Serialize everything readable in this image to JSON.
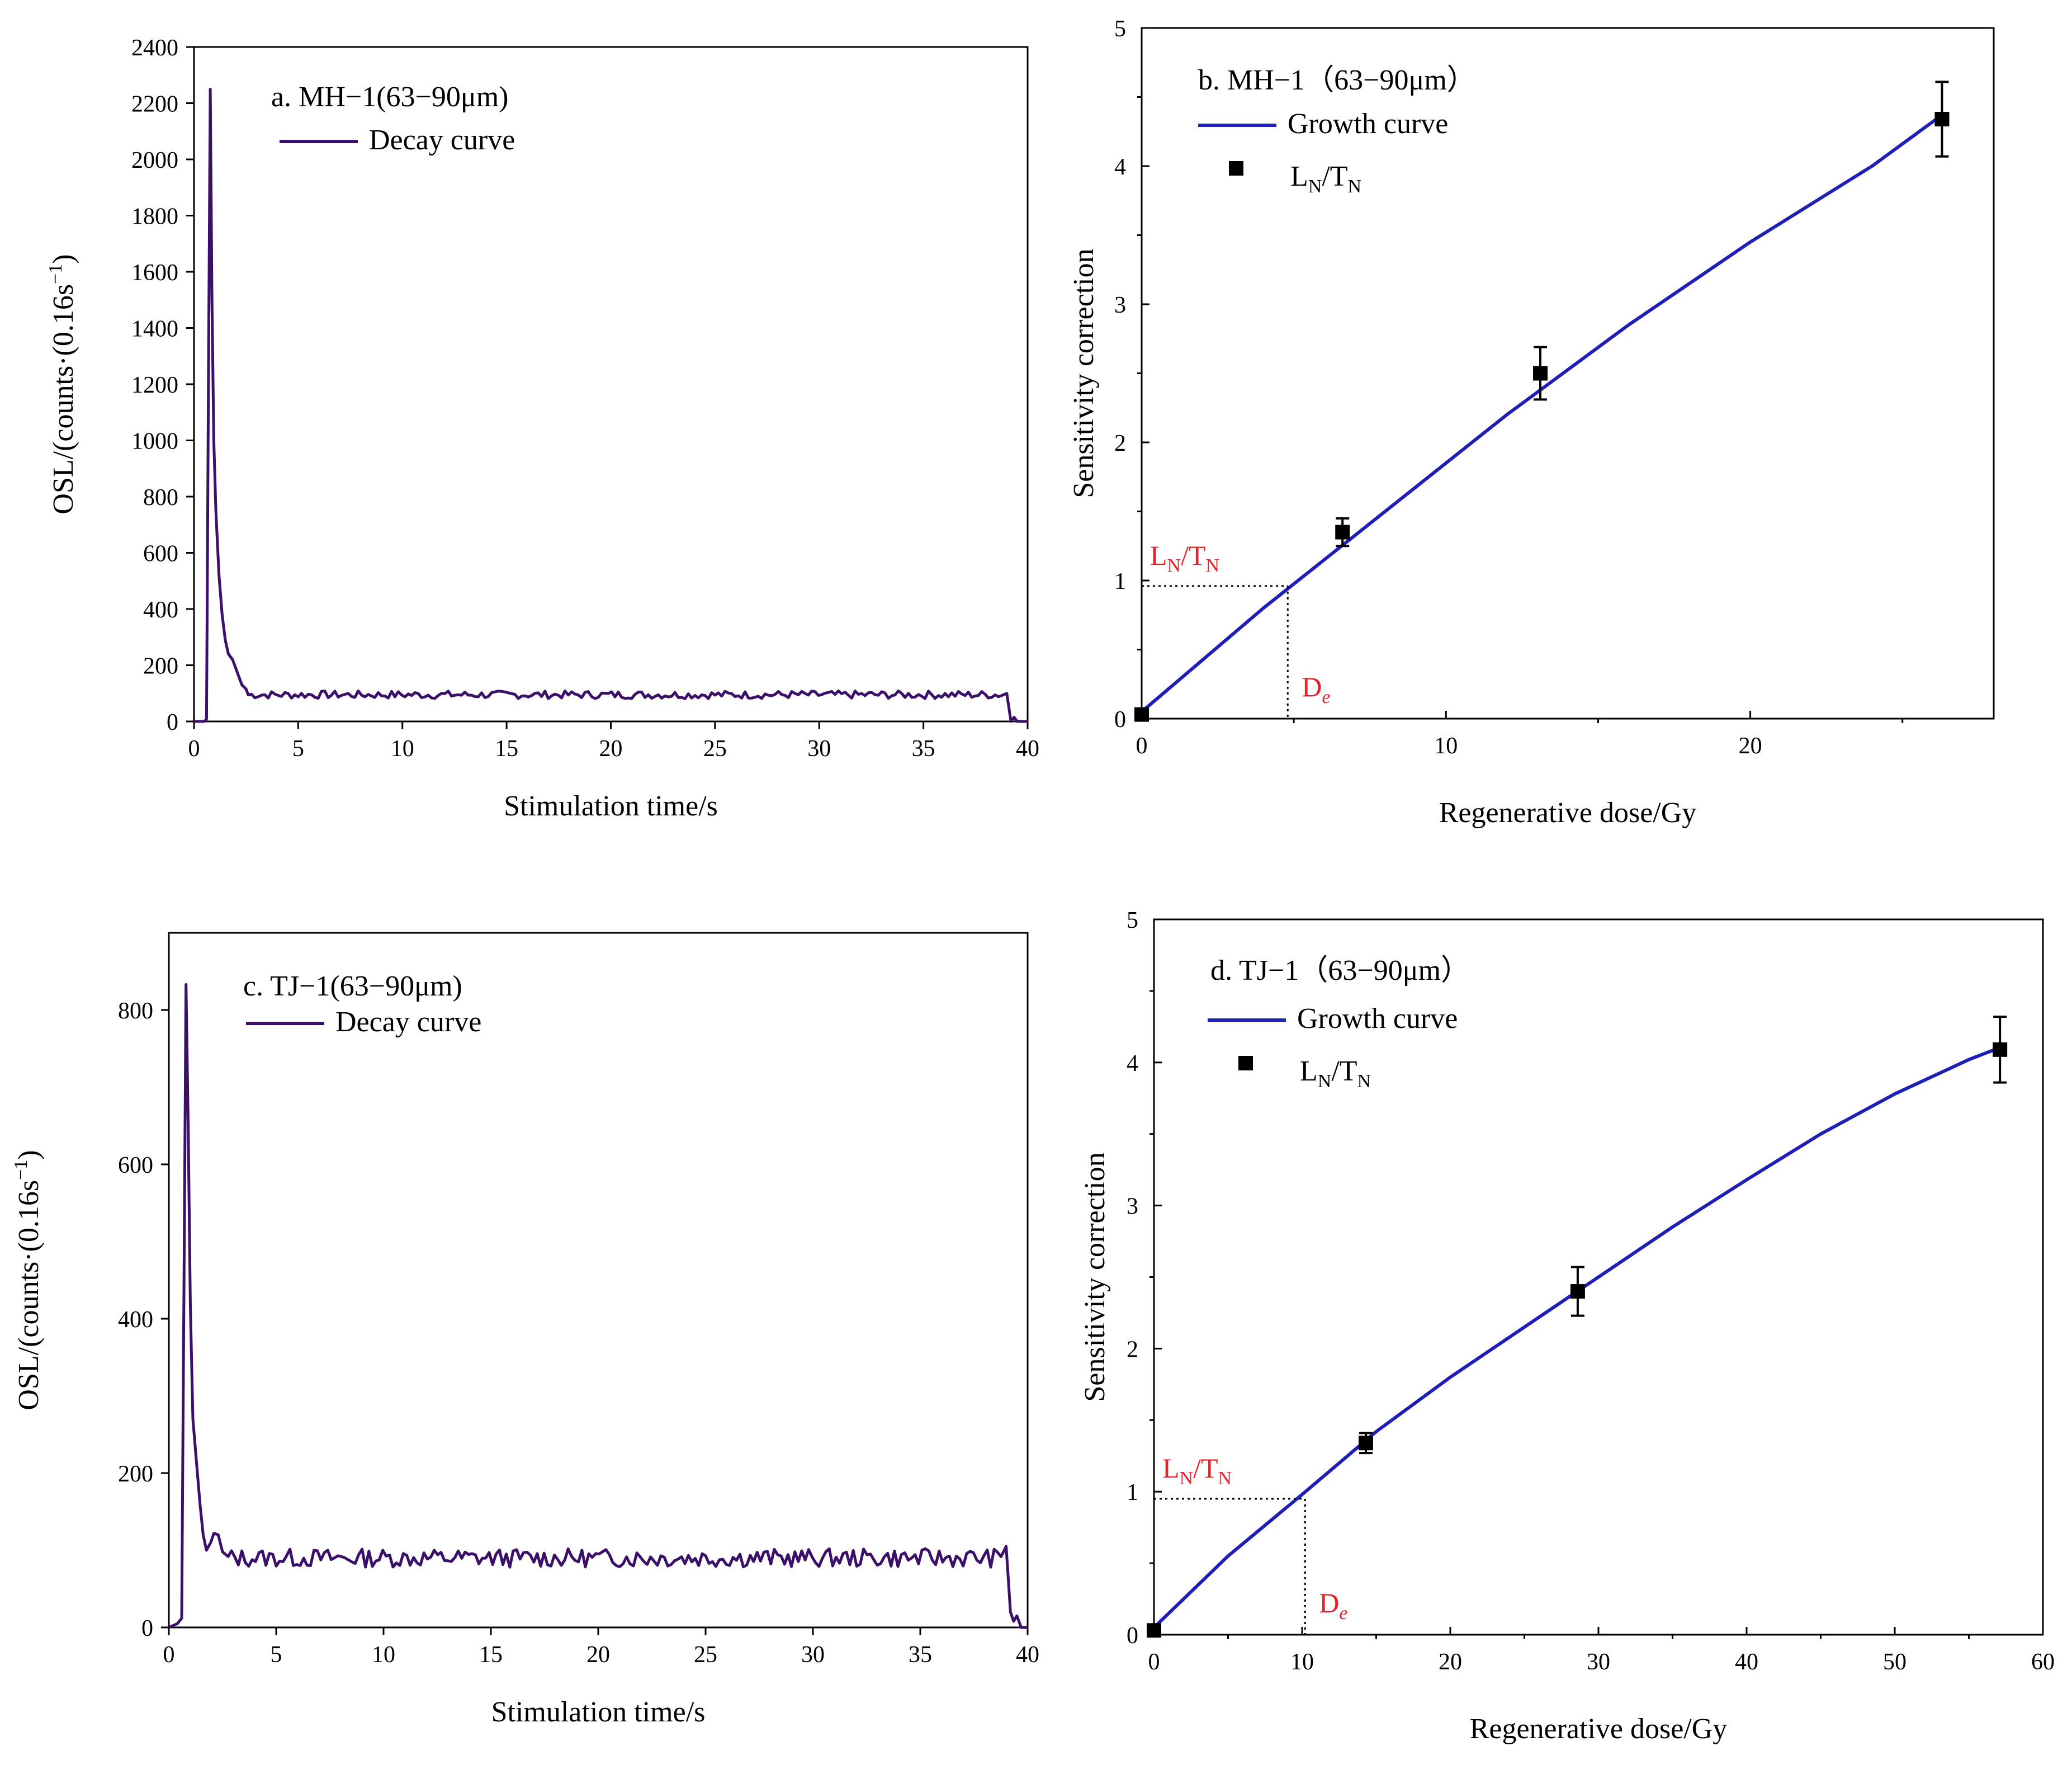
{
  "chart_data": [
    {
      "panel": "a",
      "type": "line",
      "title": "a. MH−1(63−90μm)",
      "xlabel": "Stimulation time/s",
      "ylabel_main": "OSL/(counts·(0.16s",
      "ylabel_sup": "−1",
      "ylabel_end": ")",
      "xlim": [
        0,
        40
      ],
      "ylim": [
        0,
        2400
      ],
      "xticks": [
        0,
        5,
        10,
        15,
        20,
        25,
        30,
        35,
        40
      ],
      "yticks": [
        0,
        200,
        400,
        600,
        800,
        1000,
        1200,
        1400,
        1600,
        1800,
        2000,
        2200,
        2400
      ],
      "series": [
        {
          "name": "Decay curve",
          "color": "#3b1068",
          "points": [
            [
              0,
              0
            ],
            [
              0.5,
              0
            ],
            [
              0.6,
              8
            ],
            [
              0.7,
              1300
            ],
            [
              0.78,
              2250
            ],
            [
              0.86,
              1500
            ],
            [
              0.95,
              1000
            ],
            [
              1.05,
              750
            ],
            [
              1.2,
              520
            ],
            [
              1.35,
              380
            ],
            [
              1.5,
              290
            ],
            [
              1.65,
              240
            ],
            [
              1.85,
              220
            ],
            [
              2.0,
              190
            ],
            [
              2.15,
              160
            ],
            [
              2.3,
              130
            ],
            [
              2.5,
              115
            ]
          ],
          "noise": {
            "from": 2.6,
            "to": 38.9,
            "step": 0.16,
            "mean": 95,
            "amp": 14
          },
          "tail": [
            [
              39.0,
              100
            ],
            [
              39.2,
              0
            ],
            [
              39.35,
              15
            ],
            [
              39.5,
              0
            ],
            [
              40,
              0
            ]
          ]
        }
      ]
    },
    {
      "panel": "b",
      "type": "scatter",
      "title": "b. MH−1（63−90μm）",
      "xlabel": "Regenerative dose/Gy",
      "ylabel": "Sensitivity correction",
      "xlim": [
        0,
        28
      ],
      "ylim": [
        0,
        5
      ],
      "xticks": [
        0,
        10,
        20
      ],
      "yticks": [
        0,
        1,
        2,
        3,
        4,
        5
      ],
      "growth_curve": {
        "name": "Growth curve",
        "color": "#1f1fb8",
        "points": [
          [
            0,
            0.05
          ],
          [
            4,
            0.8
          ],
          [
            8,
            1.5
          ],
          [
            12,
            2.2
          ],
          [
            16,
            2.85
          ],
          [
            20,
            3.45
          ],
          [
            24,
            4.0
          ],
          [
            26.3,
            4.37
          ]
        ]
      },
      "points": {
        "name": "L",
        "name_sub1": "N",
        "name_mid": "/T",
        "name_sub2": "N",
        "color": "#000000",
        "x": [
          0,
          6.6,
          13.1,
          26.3
        ],
        "y": [
          0.03,
          1.35,
          2.5,
          4.34
        ],
        "err": [
          0,
          0.1,
          0.19,
          0.27
        ]
      },
      "annotation": {
        "ln_tn_main": "L",
        "ln_tn_sub1": "N",
        "ln_tn_mid": "/T",
        "ln_tn_sub2": "N",
        "ln_tn_value": 0.96,
        "de_main": "D",
        "de_sub": "e",
        "de_value": 4.8,
        "color": "#e8202a"
      }
    },
    {
      "panel": "c",
      "type": "line",
      "title": "c. TJ−1(63−90μm)",
      "xlabel": "Stimulation time/s",
      "ylabel_main": "OSL/(counts·(0.16s",
      "ylabel_sup": "−1",
      "ylabel_end": ")",
      "xlim": [
        0,
        40
      ],
      "ylim": [
        0,
        900
      ],
      "xticks": [
        0,
        5,
        10,
        15,
        20,
        25,
        30,
        35,
        40
      ],
      "yticks": [
        0,
        200,
        400,
        600,
        800
      ],
      "series": [
        {
          "name": "Decay curve",
          "color": "#3b1068",
          "points": [
            [
              0,
              0
            ],
            [
              0.4,
              5
            ],
            [
              0.6,
              12
            ],
            [
              0.72,
              500
            ],
            [
              0.8,
              833
            ],
            [
              0.9,
              650
            ],
            [
              1.0,
              420
            ],
            [
              1.12,
              270
            ],
            [
              1.3,
              210
            ],
            [
              1.45,
              160
            ],
            [
              1.6,
              120
            ],
            [
              1.75,
              100
            ],
            [
              1.95,
              110
            ],
            [
              2.1,
              122
            ],
            [
              2.3,
              120
            ],
            [
              2.5,
              98
            ]
          ],
          "noise": {
            "from": 2.6,
            "to": 38.9,
            "step": 0.16,
            "mean": 90,
            "amp": 12
          },
          "tail": [
            [
              39.0,
              105
            ],
            [
              39.2,
              20
            ],
            [
              39.35,
              8
            ],
            [
              39.5,
              15
            ],
            [
              39.7,
              0
            ],
            [
              40,
              0
            ]
          ]
        }
      ]
    },
    {
      "panel": "d",
      "type": "scatter",
      "title": "d. TJ−1（63−90μm）",
      "xlabel": "Regenerative dose/Gy",
      "ylabel": "Sensitivity correction",
      "xlim": [
        0,
        60
      ],
      "ylim": [
        0,
        5
      ],
      "xticks": [
        0,
        10,
        20,
        30,
        40,
        50,
        60
      ],
      "yticks": [
        0,
        1,
        2,
        3,
        4,
        5
      ],
      "growth_curve": {
        "name": "Growth curve",
        "color": "#1f1fb8",
        "points": [
          [
            0,
            0.05
          ],
          [
            5,
            0.55
          ],
          [
            10,
            0.98
          ],
          [
            15,
            1.42
          ],
          [
            20,
            1.8
          ],
          [
            25,
            2.15
          ],
          [
            30,
            2.5
          ],
          [
            35,
            2.85
          ],
          [
            40,
            3.18
          ],
          [
            45,
            3.5
          ],
          [
            50,
            3.78
          ],
          [
            55,
            4.02
          ],
          [
            57,
            4.1
          ]
        ]
      },
      "points": {
        "name": "L",
        "name_sub1": "N",
        "name_mid": "/T",
        "name_sub2": "N",
        "color": "#000000",
        "x": [
          0,
          14.3,
          28.6,
          57.1
        ],
        "y": [
          0.03,
          1.34,
          2.4,
          4.09
        ],
        "err": [
          0,
          0.07,
          0.17,
          0.23
        ]
      },
      "annotation": {
        "ln_tn_main": "L",
        "ln_tn_sub1": "N",
        "ln_tn_mid": "/T",
        "ln_tn_sub2": "N",
        "ln_tn_value": 0.95,
        "de_main": "D",
        "de_sub": "e",
        "de_value": 10.2,
        "color": "#e8202a"
      }
    }
  ]
}
